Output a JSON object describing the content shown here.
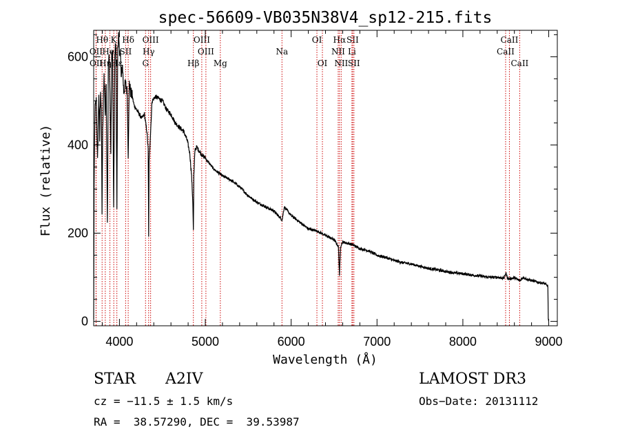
{
  "chart_data": {
    "type": "line",
    "title": "spec-56609-VB035N38V4_sp12-215.fits",
    "xlabel": "Wavelength (Å)",
    "ylabel": "Flux (relative)",
    "xlim": [
      3700,
      9100
    ],
    "ylim": [
      -10,
      660
    ],
    "xticks": [
      4000,
      5000,
      6000,
      7000,
      8000,
      9000
    ],
    "yticks": [
      0,
      200,
      400,
      600
    ],
    "x_minor_step": 200,
    "y_minor_step": 50,
    "grid": false,
    "series": [
      {
        "name": "spectrum",
        "x": [
          3700,
          3705,
          3715,
          3730,
          3745,
          3760,
          3770,
          3780,
          3790,
          3797,
          3805,
          3820,
          3835,
          3845,
          3860,
          3870,
          3880,
          3889,
          3900,
          3910,
          3920,
          3933,
          3945,
          3955,
          3960,
          3970,
          3980,
          3990,
          4000,
          4010,
          4020,
          4035,
          4050,
          4070,
          4090,
          4102,
          4115,
          4130,
          4150,
          4170,
          4200,
          4230,
          4260,
          4290,
          4320,
          4335,
          4340,
          4345,
          4360,
          4380,
          4420,
          4460,
          4500,
          4550,
          4600,
          4650,
          4700,
          4750,
          4790,
          4820,
          4840,
          4855,
          4861,
          4867,
          4880,
          4900,
          4950,
          5000,
          5100,
          5200,
          5300,
          5400,
          5500,
          5600,
          5700,
          5800,
          5895,
          5920,
          6000,
          6100,
          6200,
          6300,
          6400,
          6500,
          6550,
          6563,
          6575,
          6600,
          6700,
          6800,
          6900,
          7000,
          7100,
          7200,
          7300,
          7400,
          7500,
          7600,
          7700,
          7800,
          7900,
          8000,
          8100,
          8200,
          8300,
          8400,
          8480,
          8500,
          8520,
          8542,
          8560,
          8600,
          8662,
          8700,
          8750,
          8800,
          8850,
          8900,
          8950,
          8990,
          8995,
          9000
        ],
        "values": [
          0,
          300,
          480,
          500,
          360,
          520,
          410,
          530,
          470,
          250,
          430,
          560,
          470,
          540,
          230,
          580,
          600,
          520,
          380,
          600,
          610,
          250,
          580,
          640,
          590,
          260,
          620,
          650,
          600,
          620,
          550,
          580,
          520,
          540,
          520,
          380,
          540,
          520,
          510,
          490,
          480,
          470,
          460,
          470,
          430,
          390,
          190,
          360,
          420,
          500,
          510,
          505,
          500,
          480,
          470,
          450,
          440,
          430,
          410,
          380,
          330,
          270,
          205,
          330,
          390,
          395,
          380,
          370,
          345,
          330,
          320,
          305,
          285,
          270,
          260,
          250,
          230,
          260,
          240,
          225,
          210,
          205,
          195,
          185,
          170,
          105,
          170,
          180,
          175,
          165,
          160,
          150,
          145,
          138,
          133,
          130,
          125,
          120,
          117,
          113,
          110,
          108,
          105,
          103,
          100,
          100,
          98,
          110,
          98,
          96,
          97,
          99,
          92,
          100,
          95,
          93,
          90,
          88,
          86,
          80,
          5,
          0
        ]
      }
    ],
    "line_marks": [
      {
        "label": "Hθ",
        "x": 3798,
        "row": 0
      },
      {
        "label": "K",
        "x": 3934,
        "row": 0
      },
      {
        "label": "Hδ",
        "x": 4102,
        "row": 0
      },
      {
        "label": "OIII",
        "x": 4363,
        "row": 0
      },
      {
        "label": "OIII",
        "x": 4959,
        "row": 0
      },
      {
        "label": "OI",
        "x": 6300,
        "row": 0
      },
      {
        "label": "Hα",
        "x": 6563,
        "row": 0
      },
      {
        "label": "SII",
        "x": 6716,
        "row": 0
      },
      {
        "label": "CaII",
        "x": 8542,
        "row": 0
      },
      {
        "label": "OII",
        "x": 3727,
        "row": 1
      },
      {
        "label": "HeI",
        "x": 3889,
        "row": 1
      },
      {
        "label": "SII",
        "x": 4072,
        "row": 1
      },
      {
        "label": "Hγ",
        "x": 4340,
        "row": 1
      },
      {
        "label": "OIII",
        "x": 5007,
        "row": 1
      },
      {
        "label": "Na",
        "x": 5893,
        "row": 1
      },
      {
        "label": "NII",
        "x": 6548,
        "row": 1
      },
      {
        "label": "Li",
        "x": 6708,
        "row": 1
      },
      {
        "label": "CaII",
        "x": 8498,
        "row": 1
      },
      {
        "label": "OII",
        "x": 3729,
        "row": 2
      },
      {
        "label": "Hη",
        "x": 3835,
        "row": 2
      },
      {
        "label": "Hε",
        "x": 3970,
        "row": 2
      },
      {
        "label": "G",
        "x": 4304,
        "row": 2
      },
      {
        "label": "Hβ",
        "x": 4861,
        "row": 2
      },
      {
        "label": "Mg",
        "x": 5175,
        "row": 2
      },
      {
        "label": "OI",
        "x": 6364,
        "row": 2
      },
      {
        "label": "NII",
        "x": 6583,
        "row": 2
      },
      {
        "label": "SII",
        "x": 6731,
        "row": 2
      },
      {
        "label": "CaII",
        "x": 8662,
        "row": 2
      }
    ]
  },
  "info": {
    "object_class": "STAR",
    "subclass": "A2IV",
    "survey": "LAMOST DR3",
    "redshift": "cz = −11.5 ± 1.5 km/s",
    "obs_date": "Obs−Date: 20131112",
    "coords": "RA =  38.57290, DEC =  39.53987"
  }
}
